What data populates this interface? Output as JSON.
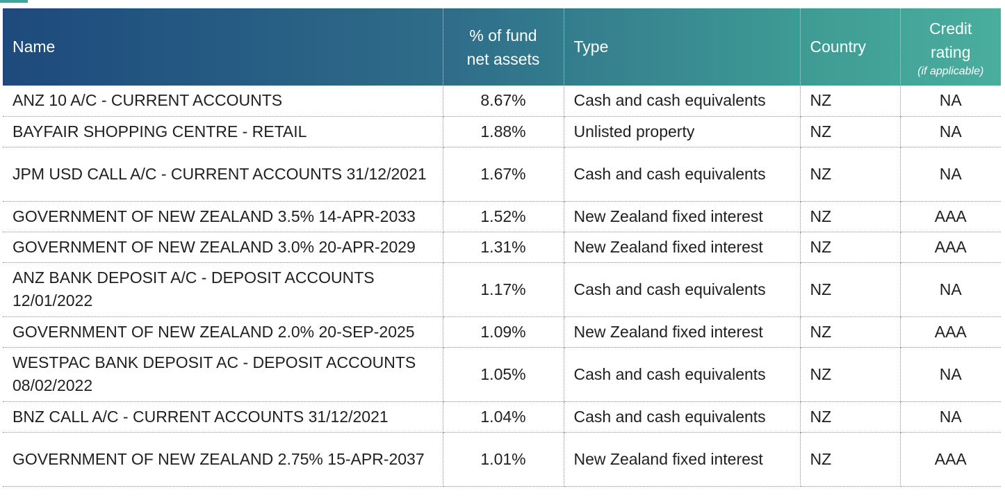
{
  "table": {
    "headers": {
      "name": "Name",
      "pct": [
        "% of fund",
        "net assets"
      ],
      "type": "Type",
      "country": "Country",
      "credit": [
        "Credit",
        "rating"
      ],
      "credit_note": "(if applicable)"
    },
    "rows": [
      {
        "name": "ANZ 10 A/C - CURRENT ACCOUNTS",
        "pct": "8.67%",
        "type": "Cash and cash equivalents",
        "country": "NZ",
        "credit": "NA"
      },
      {
        "name": "BAYFAIR SHOPPING CENTRE - RETAIL",
        "pct": "1.88%",
        "type": "Unlisted property",
        "country": "NZ",
        "credit": "NA"
      },
      {
        "name": "JPM USD CALL A/C - CURRENT ACCOUNTS 31/12/2021",
        "pct": "1.67%",
        "type": "Cash and cash equivalents",
        "country": "NZ",
        "credit": "NA"
      },
      {
        "name": "GOVERNMENT OF NEW ZEALAND 3.5% 14-APR-2033",
        "pct": "1.52%",
        "type": "New Zealand fixed interest",
        "country": "NZ",
        "credit": "AAA"
      },
      {
        "name": "GOVERNMENT OF NEW ZEALAND 3.0% 20-APR-2029",
        "pct": "1.31%",
        "type": "New Zealand fixed interest",
        "country": "NZ",
        "credit": "AAA"
      },
      {
        "name": "ANZ BANK DEPOSIT A/C - DEPOSIT ACCOUNTS 12/01/2022",
        "pct": "1.17%",
        "type": "Cash and cash equivalents",
        "country": "NZ",
        "credit": "NA"
      },
      {
        "name": "GOVERNMENT OF NEW ZEALAND 2.0% 20-SEP-2025",
        "pct": "1.09%",
        "type": "New Zealand fixed interest",
        "country": "NZ",
        "credit": "AAA"
      },
      {
        "name": "WESTPAC BANK DEPOSIT AC - DEPOSIT ACCOUNTS 08/02/2022",
        "pct": "1.05%",
        "type": "Cash and cash equivalents",
        "country": "NZ",
        "credit": "NA"
      },
      {
        "name": "BNZ CALL A/C - CURRENT ACCOUNTS 31/12/2021",
        "pct": "1.04%",
        "type": "Cash and cash equivalents",
        "country": "NZ",
        "credit": "NA"
      },
      {
        "name": "GOVERNMENT OF NEW ZEALAND 2.75% 15-APR-2037",
        "pct": "1.01%",
        "type": "New Zealand fixed interest",
        "country": "NZ",
        "credit": "AAA"
      }
    ]
  }
}
